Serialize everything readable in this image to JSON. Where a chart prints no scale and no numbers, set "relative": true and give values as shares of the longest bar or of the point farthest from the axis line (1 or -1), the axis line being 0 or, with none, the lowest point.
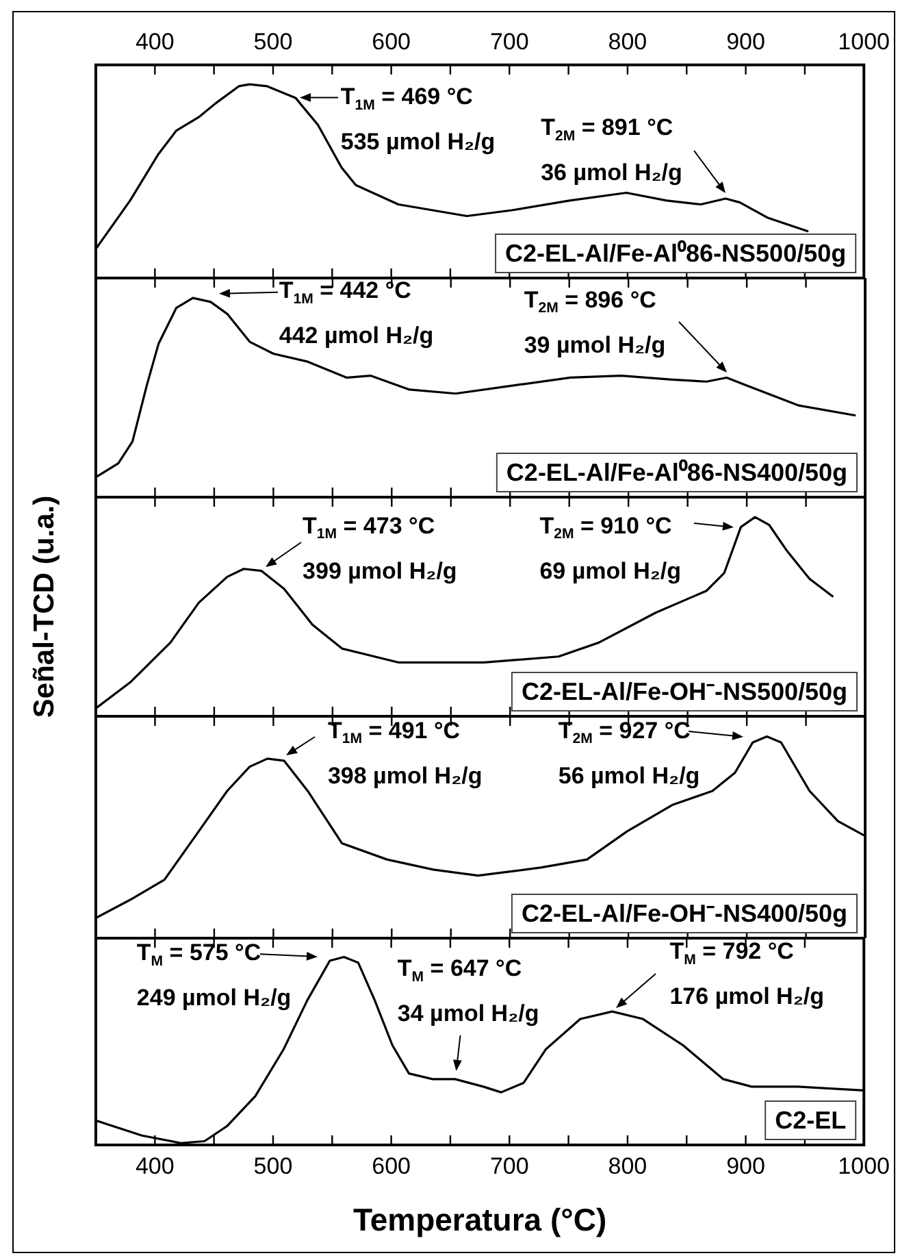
{
  "chart_data": [
    {
      "type": "line",
      "relative": true,
      "xlim": [
        350,
        1000
      ],
      "xticks": [
        400,
        {
          "value": 450,
          "label": null
        },
        500,
        {
          "value": 550,
          "label": null
        },
        600,
        {
          "value": 650,
          "label": null
        },
        700,
        {
          "value": 750,
          "label": null
        },
        800,
        {
          "value": 850,
          "label": null
        },
        900,
        {
          "value": 950,
          "label": null
        },
        1000
      ],
      "x": [
        350,
        379,
        403,
        418,
        437,
        451,
        471,
        480,
        495,
        519,
        538,
        558,
        570,
        606,
        664,
        702,
        751,
        799,
        833,
        862,
        883,
        895,
        919,
        953
      ],
      "series": [
        {
          "name": "C2-EL-Al/Fe-Al⁰86-NS500/50g",
          "color": "#000000",
          "values": [
            0.15,
            0.4,
            0.64,
            0.76,
            0.83,
            0.9,
            0.99,
            1,
            0.99,
            0.93,
            0.79,
            0.57,
            0.48,
            0.38,
            0.32,
            0.35,
            0.4,
            0.44,
            0.4,
            0.38,
            0.41,
            0.39,
            0.31,
            0.24
          ]
        }
      ],
      "annotations": [
        {
          "text": "T$_{1M}$ = 469 °C\n535 µmol H₂/g",
          "x": 519,
          "y": 0.93
        },
        {
          "text": "T$_{2M}$ = 891 °C\n36 µmol H₂/g",
          "x": 883,
          "y": 0.41
        }
      ]
    },
    {
      "type": "line",
      "relative": true,
      "tick_labels": false,
      "xlim": [
        350,
        1000
      ],
      "xticks": [
        400,
        {
          "value": 450,
          "label": null
        },
        500,
        {
          "value": 550,
          "label": null
        },
        600,
        {
          "value": 650,
          "label": null
        },
        700,
        {
          "value": 750,
          "label": null
        },
        800,
        {
          "value": 850,
          "label": null
        },
        900,
        {
          "value": 950,
          "label": null
        },
        1000
      ],
      "x": [
        350,
        369,
        381,
        393,
        403,
        418,
        432,
        447,
        461,
        480,
        500,
        529,
        562,
        582,
        615,
        654,
        702,
        751,
        794,
        837,
        866,
        883,
        900,
        944,
        992
      ],
      "series": [
        {
          "name": "C2-EL-Al/Fe-Al⁰86-NS400/50g",
          "color": "#000000",
          "values": [
            0.1,
            0.17,
            0.28,
            0.56,
            0.77,
            0.95,
            1,
            0.98,
            0.92,
            0.78,
            0.72,
            0.68,
            0.6,
            0.61,
            0.54,
            0.52,
            0.56,
            0.6,
            0.61,
            0.59,
            0.58,
            0.6,
            0.56,
            0.46,
            0.41
          ]
        }
      ],
      "annotations": [
        {
          "text": "T$_{1M}$ = 442 °C\n442 µmol H₂/g",
          "x": 447,
          "y": 0.98
        },
        {
          "text": "T$_{2M}$ = 896 °C\n39 µmol H₂/g",
          "x": 883,
          "y": 0.6
        }
      ]
    },
    {
      "type": "line",
      "relative": true,
      "tick_labels": false,
      "xlim": [
        350,
        1000
      ],
      "xticks": [
        400,
        {
          "value": 450,
          "label": null
        },
        500,
        {
          "value": 550,
          "label": null
        },
        600,
        {
          "value": 650,
          "label": null
        },
        700,
        {
          "value": 750,
          "label": null
        },
        800,
        {
          "value": 850,
          "label": null
        },
        900,
        {
          "value": 950,
          "label": null
        },
        1000
      ],
      "ylabel": "Señal-TCD (u.a.)",
      "x": [
        350,
        379,
        413,
        437,
        461,
        475,
        490,
        509,
        533,
        558,
        606,
        678,
        741,
        775,
        823,
        866,
        881,
        895,
        907,
        919,
        934,
        953,
        973
      ],
      "series": [
        {
          "name": "C2-EL-Al/Fe-OH⁻-NS500/50g",
          "color": "#000000",
          "values": [
            0.04,
            0.17,
            0.37,
            0.57,
            0.7,
            0.74,
            0.73,
            0.64,
            0.46,
            0.34,
            0.27,
            0.27,
            0.3,
            0.37,
            0.52,
            0.63,
            0.72,
            0.95,
            1,
            0.96,
            0.83,
            0.69,
            0.6
          ]
        }
      ],
      "annotations": [
        {
          "text": "T$_{1M}$ = 473 °C\n399 µmol H₂/g",
          "x": 490,
          "y": 0.73
        },
        {
          "text": "T$_{2M}$ = 910 °C\n69 µmol H₂/g",
          "x": 895,
          "y": 0.95
        }
      ]
    },
    {
      "type": "line",
      "relative": true,
      "tick_labels": false,
      "xlim": [
        350,
        1000
      ],
      "xticks": [
        400,
        {
          "value": 450,
          "label": null
        },
        500,
        {
          "value": 550,
          "label": null
        },
        600,
        {
          "value": 650,
          "label": null
        },
        700,
        {
          "value": 750,
          "label": null
        },
        800,
        {
          "value": 850,
          "label": null
        },
        900,
        {
          "value": 950,
          "label": null
        },
        1000
      ],
      "x": [
        350,
        379,
        408,
        437,
        461,
        480,
        495,
        509,
        529,
        558,
        596,
        635,
        673,
        726,
        765,
        799,
        837,
        871,
        890,
        905,
        917,
        929,
        953,
        977,
        999
      ],
      "series": [
        {
          "name": "C2-EL-Al/Fe-OH⁻-NS400/50g",
          "color": "#000000",
          "values": [
            0.1,
            0.19,
            0.29,
            0.53,
            0.73,
            0.85,
            0.89,
            0.88,
            0.73,
            0.47,
            0.39,
            0.34,
            0.31,
            0.35,
            0.39,
            0.53,
            0.66,
            0.73,
            0.82,
            0.97,
            1,
            0.97,
            0.73,
            0.58,
            0.51
          ]
        }
      ],
      "annotations": [
        {
          "text": "T$_{1M}$ = 491 °C\n398 µmol H₂/g",
          "x": 509,
          "y": 0.88
        },
        {
          "text": "T$_{2M}$ = 927 °C\n56 µmol H₂/g",
          "x": 905,
          "y": 0.97
        }
      ]
    },
    {
      "type": "line",
      "relative": true,
      "xlim": [
        350,
        1000
      ],
      "xticks": [
        400,
        {
          "value": 450,
          "label": null
        },
        500,
        {
          "value": 550,
          "label": null
        },
        600,
        {
          "value": 650,
          "label": null
        },
        700,
        {
          "value": 750,
          "label": null
        },
        800,
        {
          "value": 850,
          "label": null
        },
        900,
        {
          "value": 950,
          "label": null
        },
        1000
      ],
      "xlabel": "Temperatura (°C)",
      "x": [
        350,
        389,
        422,
        442,
        461,
        485,
        509,
        529,
        548,
        560,
        572,
        586,
        601,
        615,
        635,
        654,
        678,
        693,
        712,
        731,
        760,
        787,
        813,
        847,
        881,
        905,
        944,
        1000
      ],
      "series": [
        {
          "name": "C2-EL",
          "color": "#000000",
          "values": [
            0.13,
            0.05,
            0.01,
            0.02,
            0.1,
            0.26,
            0.51,
            0.77,
            0.98,
            1,
            0.97,
            0.77,
            0.53,
            0.38,
            0.35,
            0.35,
            0.31,
            0.28,
            0.33,
            0.51,
            0.67,
            0.71,
            0.67,
            0.53,
            0.35,
            0.31,
            0.31,
            0.29
          ]
        }
      ],
      "annotations": [
        {
          "text": "T$_{M}$ = 575 °C\n249 µmol H₂/g",
          "x": 548,
          "y": 0.98
        },
        {
          "text": "T$_{M}$ = 647 °C\n34 µmol H₂/g",
          "x": 654,
          "y": 0.35
        },
        {
          "text": "T$_{M}$ = 792 °C\n176 µmol H₂/g",
          "x": 787,
          "y": 0.71
        }
      ]
    }
  ]
}
